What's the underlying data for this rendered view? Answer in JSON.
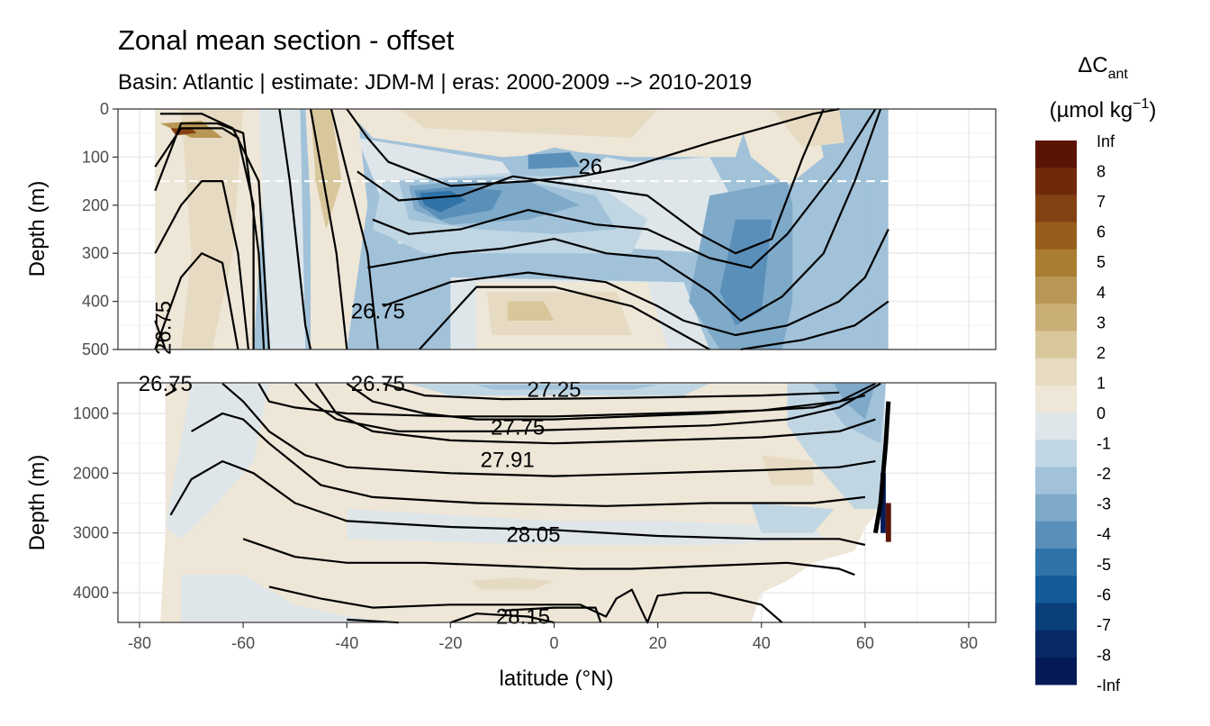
{
  "chart_data": {
    "type": "contour",
    "title": "Zonal mean section - offset",
    "subtitle": "Basin: Atlantic | estimate: JDM-M | eras: 2000-2009 --> 2010-2019",
    "xlabel": "latitude (°N)",
    "x_ticks": [
      -80,
      -60,
      -40,
      -20,
      0,
      20,
      40,
      60,
      80
    ],
    "xlim": [
      -85,
      85
    ],
    "panels": [
      {
        "name": "upper",
        "ylabel": "Depth (m)",
        "ylim": [
          500,
          0
        ],
        "y_ticks": [
          0,
          100,
          200,
          300,
          400,
          500
        ],
        "reference_depth_dashed": 150,
        "contour_labels": [
          {
            "text": "26",
            "lat": 7,
            "depth": 120
          },
          {
            "text": "26.75",
            "lat": -34,
            "depth": 420
          },
          {
            "text": "26.75",
            "lat": -74,
            "depth": 440,
            "rotate": -90
          }
        ]
      },
      {
        "name": "lower",
        "ylabel": "Depth (m)",
        "ylim": [
          4500,
          500
        ],
        "y_ticks": [
          1000,
          2000,
          3000,
          4000
        ],
        "contour_labels": [
          {
            "text": "26.75",
            "lat": -75,
            "depth": 500
          },
          {
            "text": "26.75",
            "lat": -34,
            "depth": 500
          },
          {
            "text": "27.25",
            "lat": 0,
            "depth": 600
          },
          {
            "text": "27.75",
            "lat": -7,
            "depth": 1230
          },
          {
            "text": "27.91",
            "lat": -9,
            "depth": 1780
          },
          {
            "text": "28.05",
            "lat": -4,
            "depth": 3030
          },
          {
            "text": "28.15",
            "lat": -6,
            "depth": 4400
          }
        ]
      }
    ],
    "legend": {
      "title": "ΔC",
      "title_subscript": "ant",
      "unit_before": "(µmol kg",
      "unit_superscript": "−1",
      "unit_after": ")",
      "labels": [
        "Inf",
        "8",
        "7",
        "6",
        "5",
        "4",
        "3",
        "2",
        "1",
        "0",
        "-1",
        "-2",
        "-3",
        "-4",
        "-5",
        "-6",
        "-7",
        "-8",
        "-Inf"
      ],
      "colors": [
        "#5a1405",
        "#702a0b",
        "#844213",
        "#965d1c",
        "#a97d32",
        "#b99653",
        "#c9ae76",
        "#d9c79c",
        "#e6dbc2",
        "#eee6d7",
        "#dee6ea",
        "#c0d6e3",
        "#a1c2d9",
        "#7ea9c9",
        "#5a8fba",
        "#2f73a8",
        "#145a96",
        "#0a3f7c",
        "#072a66",
        "#061a57"
      ]
    }
  }
}
